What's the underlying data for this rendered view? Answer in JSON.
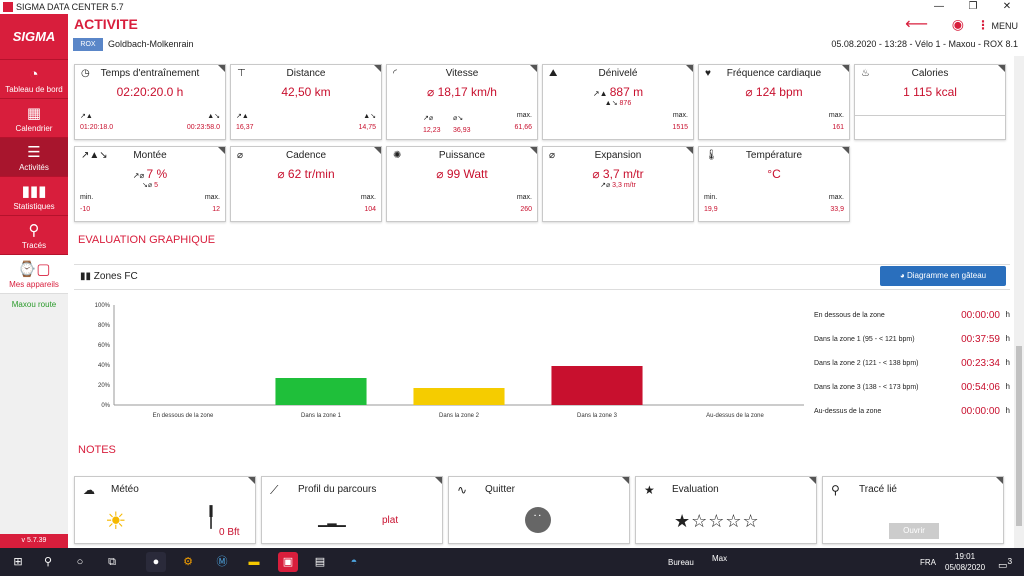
{
  "window": {
    "title": "SIGMA DATA CENTER 5.7"
  },
  "sidebar": {
    "logo": "SIGMA",
    "items": [
      {
        "label": "Tableau de bord",
        "icon": "gauge-icon"
      },
      {
        "label": "Calendrier",
        "icon": "calendar-icon"
      },
      {
        "label": "Activités",
        "icon": "list-icon"
      },
      {
        "label": "Statistiques",
        "icon": "bar-chart-icon"
      },
      {
        "label": "Tracés",
        "icon": "map-pin-icon"
      },
      {
        "label": "Mes appareils",
        "icon": "device-icon"
      }
    ],
    "user": "Maxou route",
    "version": "v 5.7.39"
  },
  "header": {
    "title": "ACTIVITE",
    "badge": "ROX",
    "route": "Goldbach-Molkenrain",
    "info": "05.08.2020  -  13:28  -  Vélo 1  -  Maxou  -  ROX 8.1",
    "menu": "MENU"
  },
  "cards": {
    "temps": {
      "title": "Temps d'entraînement",
      "value": "02:20:20.0 h",
      "l": "01:20:18.0",
      "r": "00:23:58.0"
    },
    "distance": {
      "title": "Distance",
      "value": "42,50 km",
      "l": "16,37",
      "r": "14,75"
    },
    "vitesse": {
      "title": "Vitesse",
      "value": "⌀ 18,17 km/h",
      "a": "12,23",
      "b": "36,93",
      "max_label": "max.",
      "max": "61,66"
    },
    "denivele": {
      "title": "Dénivelé",
      "value": "887 m",
      "sub": "876",
      "max_label": "max.",
      "max": "1515"
    },
    "fc": {
      "title": "Fréquence cardiaque",
      "value": "⌀ 124 bpm",
      "max_label": "max.",
      "max": "161"
    },
    "calories": {
      "title": "Calories",
      "value": "1 115 kcal"
    },
    "montee": {
      "title": "Montée",
      "value": "7 %",
      "sub": "5",
      "min_label": "min.",
      "min": "-10",
      "max_label": "max.",
      "max": "12"
    },
    "cadence": {
      "title": "Cadence",
      "value": "⌀ 62 tr/min",
      "max_label": "max.",
      "max": "104"
    },
    "puissance": {
      "title": "Puissance",
      "value": "⌀ 99 Watt",
      "max_label": "max.",
      "max": "260"
    },
    "expansion": {
      "title": "Expansion",
      "value": "⌀ 3,7 m/tr",
      "sub": "3,3 m/tr"
    },
    "temperature": {
      "title": "Température",
      "value": "°C",
      "min_label": "min.",
      "min": "19,9",
      "max_label": "max.",
      "max": "33,9"
    }
  },
  "evaluation": {
    "section": "EVALUATION GRAPHIQUE",
    "panel_title": "Zones FC",
    "pie_button": "Diagramme en gâteau",
    "zones": [
      {
        "label": "En dessous de la zone",
        "value": "00:00:00",
        "unit": "h"
      },
      {
        "label": "Dans la zone 1 (95 - < 121 bpm)",
        "value": "00:37:59",
        "unit": "h"
      },
      {
        "label": "Dans la zone 2 (121 - < 138 bpm)",
        "value": "00:23:34",
        "unit": "h"
      },
      {
        "label": "Dans la zone 3 (138 - < 173 bpm)",
        "value": "00:54:06",
        "unit": "h"
      },
      {
        "label": "Au-dessus de la zone",
        "value": "00:00:00",
        "unit": "h"
      }
    ]
  },
  "chart_data": {
    "type": "bar",
    "categories": [
      "En dessous de la zone",
      "Dans la zone 1",
      "Dans la zone 2",
      "Dans la zone 3",
      "Au-dessus de la zone"
    ],
    "values": [
      0,
      27,
      17,
      39,
      0
    ],
    "colors": [
      "#cccccc",
      "#1fbf3a",
      "#f5cc00",
      "#c8102e",
      "#cccccc"
    ],
    "yticks": [
      "0%",
      "20%",
      "40%",
      "60%",
      "80%",
      "100%"
    ],
    "ylim": [
      0,
      100
    ]
  },
  "notes": {
    "section": "NOTES",
    "meteo": {
      "title": "Météo",
      "wind": "0 Bft"
    },
    "profil": {
      "title": "Profil du parcours",
      "value": "plat"
    },
    "quitter": {
      "title": "Quitter"
    },
    "eval": {
      "title": "Evaluation"
    },
    "trace": {
      "title": "Tracé lié",
      "button": "Ouvrir"
    }
  },
  "taskbar": {
    "bureau": "Bureau",
    "max": "Max",
    "lang": "FRA",
    "time": "19:01",
    "date": "05/08/2020",
    "notif": "3"
  }
}
